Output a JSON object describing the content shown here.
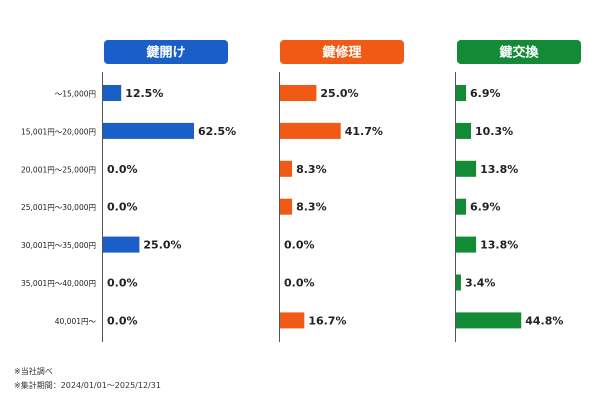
{
  "chart_data": {
    "type": "bar",
    "orientation": "horizontal",
    "categories": [
      "～15,000円",
      "15,001円～20,000円",
      "20,001円～25,000円",
      "25,001円～30,000円",
      "30,001円～35,000円",
      "35,001円～40,000円",
      "40,001円～"
    ],
    "series": [
      {
        "name": "鍵開け",
        "color": "#1a5fc8",
        "values": [
          12.5,
          62.5,
          0.0,
          0.0,
          25.0,
          0.0,
          0.0
        ],
        "labels": [
          "12.5%",
          "62.5%",
          "0.0%",
          "0.0%",
          "25.0%",
          "0.0%",
          "0.0%"
        ]
      },
      {
        "name": "鍵修理",
        "color": "#f05a14",
        "values": [
          25.0,
          41.7,
          8.3,
          8.3,
          0.0,
          0.0,
          16.7
        ],
        "labels": [
          "25.0%",
          "41.7%",
          "8.3%",
          "8.3%",
          "0.0%",
          "0.0%",
          "16.7%"
        ]
      },
      {
        "name": "鍵交換",
        "color": "#138a36",
        "values": [
          6.9,
          10.3,
          13.8,
          6.9,
          13.8,
          3.4,
          44.8
        ],
        "labels": [
          "6.9%",
          "10.3%",
          "13.8%",
          "6.9%",
          "13.8%",
          "3.4%",
          "44.8%"
        ]
      }
    ],
    "xlim": [
      0,
      100
    ],
    "grid": false,
    "legend": "none"
  },
  "notes": [
    "※当社調べ",
    "※集計期間：2024/01/01～2025/12/31"
  ]
}
